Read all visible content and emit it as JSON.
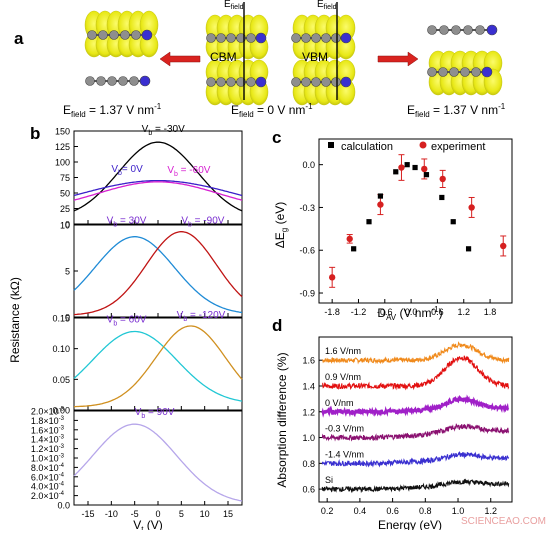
{
  "colors": {
    "yellow": "#f2f21a",
    "yellow_dark": "#c8c812",
    "atom_gray": "#8e8e8e",
    "atom_blue": "#3a2fd0",
    "arrow_red": "#d9231f",
    "calc": "#000000",
    "exp": "#d62020",
    "watermark": "#e9a0a0"
  },
  "panel_a": {
    "label": "a",
    "field_top_left": "E",
    "field_top_left_sub": "field",
    "field_top_right": "E",
    "field_top_right_sub": "field",
    "cbm": "CBM",
    "vbm": "VBM",
    "e_left": "E",
    "e_left_sub": "field",
    "e_left_val": " = 1.37 V nm",
    "e_left_exp": "-1",
    "e_mid": "E",
    "e_mid_sub": "field",
    "e_mid_val": " = 0 V nm",
    "e_mid_exp": "-1",
    "e_right": "E",
    "e_right_sub": "field",
    "e_right_val": " = 1.37 V nm",
    "e_right_exp": "-1",
    "icon": "band-structure-orbital-icon"
  },
  "chart_data": [
    {
      "panel": "b",
      "type": "line",
      "ylabel": "Resistance (kΩ)",
      "xlabel": "V",
      "xlabel_sub": "t",
      "xlabel_unit": " (V)",
      "xlim": [
        -18,
        18
      ],
      "xticks": [
        "-15",
        "-10",
        "-5",
        "0",
        "5",
        "10",
        "15"
      ],
      "subplots": [
        {
          "ylim": [
            0,
            150
          ],
          "yticks": [
            "0",
            "25",
            "50",
            "75",
            "100",
            "125",
            "150"
          ],
          "series": [
            {
              "name": "V_b = -30V",
              "color": "#000000",
              "peak_x": 0,
              "peak_y": 132,
              "width": 8.5,
              "base": 8
            },
            {
              "name": "V_b = 0V",
              "color": "#3b1fc9",
              "peak_x": 0,
              "peak_y": 70,
              "width": 17,
              "base": 14
            },
            {
              "name": "V_b = -60V",
              "color": "#d61fd1",
              "peak_x": 0,
              "peak_y": 68,
              "width": 13,
              "base": 20
            }
          ],
          "labels": [
            {
              "text": "V",
              "sub": "b",
              "rest": " = -30V",
              "color": "#000000",
              "x": -3.5,
              "y": 148
            },
            {
              "text": "V",
              "sub": "b",
              "rest": "= 0V",
              "color": "#3b1fc9",
              "x": -10,
              "y": 84
            },
            {
              "text": "V",
              "sub": "b",
              "rest": " = -60V",
              "color": "#d61fd1",
              "x": 2,
              "y": 82
            }
          ]
        },
        {
          "ylim": [
            0,
            11
          ],
          "yticks": [
            "0",
            "5",
            "10"
          ],
          "series": [
            {
              "name": "V_b = 30V",
              "color": "#1f8bd6",
              "peak_x": -5,
              "peak_y": 9.6,
              "width": 8.5,
              "base": 0.3
            },
            {
              "name": "V_b = -90V",
              "color": "#c01414",
              "peak_x": 5,
              "peak_y": 10.2,
              "width": 7.5,
              "base": 0.2
            }
          ],
          "labels": [
            {
              "text": "V",
              "sub": "b",
              "rest": " = 30V",
              "color": "#7a2fd0",
              "x": -11,
              "y": 11.2
            },
            {
              "text": "V",
              "sub": "b",
              "rest": " = -90V",
              "color": "#7a2fd0",
              "x": 5,
              "y": 11.2
            }
          ]
        },
        {
          "ylim": [
            0,
            0.15
          ],
          "yticks": [
            "0.00",
            "0.05",
            "0.10",
            "0.15"
          ],
          "series": [
            {
              "name": "V_b = 60V",
              "color": "#21c7d4",
              "peak_x": -5,
              "peak_y": 0.128,
              "width": 9,
              "base": 0.01
            },
            {
              "name": "V_b = -120V",
              "color": "#d09020",
              "peak_x": 7,
              "peak_y": 0.137,
              "width": 7.5,
              "base": 0.005
            }
          ],
          "labels": [
            {
              "text": "V",
              "sub": "b",
              "rest": " = 60V",
              "color": "#7a2fd0",
              "x": -11,
              "y": 0.143
            },
            {
              "text": "V",
              "sub": "b",
              "rest": " = -120V",
              "color": "#7a2fd0",
              "x": 4,
              "y": 0.15
            }
          ]
        },
        {
          "ylim": [
            0,
            0.002
          ],
          "yticks": [
            "0.0",
            "2.0×10",
            "4.0×10",
            "6.0×10",
            "8.0×10",
            "1.0×10",
            "1.2×10",
            "1.4×10",
            "1.6×10",
            "1.8×10",
            "2.0×10"
          ],
          "ytick_exp": [
            "",
            "-4",
            "-4",
            "-4",
            "-4",
            "-3",
            "-3",
            "-3",
            "-3",
            "-3",
            "-3"
          ],
          "series": [
            {
              "name": "V_b = 90V",
              "color": "#b6a6ea",
              "peak_x": -5,
              "peak_y": 0.00172,
              "width": 9,
              "base": 2e-05
            }
          ],
          "labels": [
            {
              "text": "V",
              "sub": "b",
              "rest": " = 90V",
              "color": "#7a2fd0",
              "x": -5,
              "y": 0.00192
            }
          ]
        }
      ]
    },
    {
      "panel": "c",
      "type": "scatter",
      "xlabel": "D",
      "xlabel_sub": "AV",
      "xlabel_unit": " (V nm",
      "xlabel_exp": "-1",
      "xlabel_close": ")",
      "ylabel": "ΔE",
      "ylabel_sub": "g",
      "ylabel_unit": " (eV)",
      "xlim": [
        -2.1,
        2.3
      ],
      "ylim": [
        -0.97,
        0.18
      ],
      "xticks": [
        -1.8,
        -1.2,
        -0.6,
        0.0,
        0.6,
        1.2,
        1.8
      ],
      "xtick_labels": [
        "-1.8",
        "-1.2",
        "-0.6",
        "0.0",
        "0.6",
        "1.2",
        "1.8"
      ],
      "yticks": [
        0.0,
        -0.3,
        -0.6,
        -0.9
      ],
      "ytick_labels": [
        "0.0",
        "-0.3",
        "-0.6",
        "-0.9"
      ],
      "legend": [
        {
          "label": "calculation",
          "color": "#000000",
          "marker": "square"
        },
        {
          "label": "experiment",
          "color": "#d62020",
          "marker": "circle"
        }
      ],
      "calculation": [
        {
          "x": -1.31,
          "y": -0.59
        },
        {
          "x": -0.96,
          "y": -0.4
        },
        {
          "x": -0.7,
          "y": -0.22
        },
        {
          "x": -0.35,
          "y": -0.05
        },
        {
          "x": -0.09,
          "y": 0.0
        },
        {
          "x": 0.09,
          "y": -0.02
        },
        {
          "x": 0.35,
          "y": -0.07
        },
        {
          "x": 0.7,
          "y": -0.23
        },
        {
          "x": 0.96,
          "y": -0.4
        },
        {
          "x": 1.31,
          "y": -0.59
        }
      ],
      "experiment": [
        {
          "x": -1.8,
          "y": -0.79,
          "err": 0.07
        },
        {
          "x": -1.4,
          "y": -0.52,
          "err": 0.03
        },
        {
          "x": -0.7,
          "y": -0.28,
          "err": 0.07
        },
        {
          "x": -0.22,
          "y": -0.02,
          "err": 0.09
        },
        {
          "x": 0.3,
          "y": -0.03,
          "err": 0.07
        },
        {
          "x": 0.72,
          "y": -0.1,
          "err": 0.06
        },
        {
          "x": 1.38,
          "y": -0.3,
          "err": 0.07
        },
        {
          "x": 2.1,
          "y": -0.57,
          "err": 0.07
        }
      ]
    },
    {
      "panel": "d",
      "type": "line",
      "xlabel": "Energy (eV)",
      "ylabel": "Absorption difference (%)",
      "xlim": [
        0.15,
        1.33
      ],
      "ylim": [
        0.5,
        1.78
      ],
      "xticks": [
        0.2,
        0.4,
        0.6,
        0.8,
        1.0,
        1.2
      ],
      "xtick_labels": [
        "0.2",
        "0.4",
        "0.6",
        "0.8",
        "1.0",
        "1.2"
      ],
      "yticks": [
        0.6,
        0.8,
        1.0,
        1.2,
        1.4,
        1.6
      ],
      "ytick_labels": [
        "0.6",
        "0.8",
        "1.0",
        "1.2",
        "1.4",
        "1.6"
      ],
      "series": [
        {
          "name": "1.6 V/nm",
          "color": "#f08a1c",
          "base": 1.6,
          "bump": 0.12,
          "rise": 0.0,
          "noise": 0.018
        },
        {
          "name": "0.9 V/nm",
          "color": "#e21010",
          "base": 1.4,
          "bump": 0.22,
          "rise": 0.0,
          "noise": 0.02
        },
        {
          "name": "0 V/nm",
          "color": "#a020c8",
          "base": 1.2,
          "bump": 0.08,
          "rise": 0.1,
          "noise": 0.015
        },
        {
          "name": "-0.3 V/nm",
          "color": "#8a1070",
          "base": 1.0,
          "bump": 0.05,
          "rise": 0.2,
          "noise": 0.02
        },
        {
          "name": "-1.4 V/nm",
          "color": "#3a30d0",
          "base": 0.8,
          "bump": 0.04,
          "rise": 0.15,
          "noise": 0.02
        },
        {
          "name": "Si",
          "color": "#111111",
          "base": 0.6,
          "bump": 0.03,
          "rise": 0.15,
          "noise": 0.018
        }
      ],
      "series_labels": [
        "1.6 V/nm",
        "0.9 V/nm",
        "0 V/nm",
        "-0.3 V/nm",
        "-1.4 V/nm",
        "Si"
      ]
    }
  ],
  "panel_labels": {
    "b": "b",
    "c": "c",
    "d": "d"
  },
  "watermark": "SCIENCEAO.COM"
}
